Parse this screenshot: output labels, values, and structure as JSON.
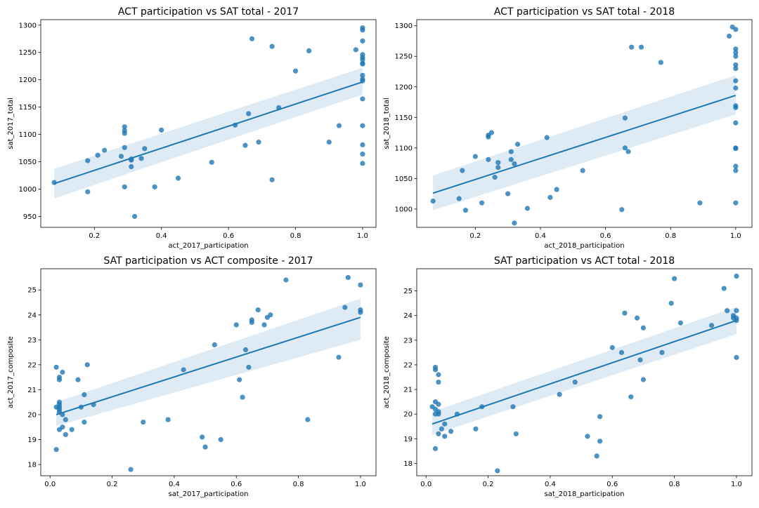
{
  "figure": {
    "colors": {
      "point": "#1f77b4",
      "line": "#1f77b4",
      "band": "#1f77b4",
      "axes": "#000000"
    }
  },
  "chart_data": [
    {
      "type": "scatter",
      "title": "ACT participation vs SAT total - 2017",
      "xlabel": "act_2017_participation",
      "ylabel": "sat_2017_total",
      "xlim": [
        0.04,
        1.04
      ],
      "ylim": [
        930,
        1310
      ],
      "xticks": [
        0.2,
        0.4,
        0.6,
        0.8,
        1.0
      ],
      "xtick_labels": [
        "0.2",
        "0.4",
        "0.6",
        "0.8",
        "1.0"
      ],
      "yticks": [
        950,
        1000,
        1050,
        1100,
        1150,
        1200,
        1250,
        1300
      ],
      "ytick_labels": [
        "950",
        "1000",
        "1050",
        "1100",
        "1150",
        "1200",
        "1250",
        "1300"
      ],
      "points": [
        [
          0.08,
          1012
        ],
        [
          0.18,
          1052
        ],
        [
          0.18,
          995
        ],
        [
          0.21,
          1062
        ],
        [
          0.23,
          1071
        ],
        [
          0.28,
          1060
        ],
        [
          0.29,
          1114
        ],
        [
          0.29,
          1107
        ],
        [
          0.29,
          1102
        ],
        [
          0.29,
          1076
        ],
        [
          0.29,
          1004
        ],
        [
          0.31,
          1055
        ],
        [
          0.31,
          1053
        ],
        [
          0.31,
          1041
        ],
        [
          0.32,
          950
        ],
        [
          0.34,
          1056
        ],
        [
          0.35,
          1074
        ],
        [
          0.38,
          1004
        ],
        [
          0.4,
          1108
        ],
        [
          0.45,
          1020
        ],
        [
          0.55,
          1049
        ],
        [
          0.62,
          1117
        ],
        [
          0.65,
          1080
        ],
        [
          0.66,
          1138
        ],
        [
          0.67,
          1275
        ],
        [
          0.69,
          1086
        ],
        [
          0.73,
          1261
        ],
        [
          0.73,
          1017
        ],
        [
          0.75,
          1149
        ],
        [
          0.8,
          1216
        ],
        [
          0.84,
          1253
        ],
        [
          0.9,
          1086
        ],
        [
          0.93,
          1116
        ],
        [
          0.98,
          1255
        ],
        [
          1.0,
          1295
        ],
        [
          1.0,
          1291
        ],
        [
          1.0,
          1271
        ],
        [
          1.0,
          1246
        ],
        [
          1.0,
          1241
        ],
        [
          1.0,
          1237
        ],
        [
          1.0,
          1230
        ],
        [
          1.0,
          1229
        ],
        [
          1.0,
          1208
        ],
        [
          1.0,
          1201
        ],
        [
          1.0,
          1198
        ],
        [
          1.0,
          1165
        ],
        [
          1.0,
          1116
        ],
        [
          1.0,
          1081
        ],
        [
          1.0,
          1064
        ],
        [
          1.0,
          1047
        ]
      ],
      "regression": {
        "x": [
          0.08,
          1.0
        ],
        "y": [
          1010,
          1196
        ],
        "band_lower": [
          983,
          1173
        ],
        "band_upper": [
          1037,
          1222
        ]
      }
    },
    {
      "type": "scatter",
      "title": "ACT participation vs SAT total - 2018",
      "xlabel": "act_2018_participation",
      "ylabel": "sat_2018_total",
      "xlim": [
        0.02,
        1.05
      ],
      "ylim": [
        970,
        1310
      ],
      "xticks": [
        0.2,
        0.4,
        0.6,
        0.8,
        1.0
      ],
      "xtick_labels": [
        "0.2",
        "0.4",
        "0.6",
        "0.8",
        "1.0"
      ],
      "yticks": [
        1000,
        1050,
        1100,
        1150,
        1200,
        1250,
        1300
      ],
      "ytick_labels": [
        "1000",
        "1050",
        "1100",
        "1150",
        "1200",
        "1250",
        "1300"
      ],
      "points": [
        [
          0.07,
          1013
        ],
        [
          0.15,
          1017
        ],
        [
          0.16,
          1063
        ],
        [
          0.17,
          998
        ],
        [
          0.2,
          1086
        ],
        [
          0.22,
          1010
        ],
        [
          0.24,
          1121
        ],
        [
          0.24,
          1118
        ],
        [
          0.24,
          1081
        ],
        [
          0.25,
          1125
        ],
        [
          0.26,
          1052
        ],
        [
          0.27,
          1076
        ],
        [
          0.27,
          1068
        ],
        [
          0.3,
          1025
        ],
        [
          0.31,
          1094
        ],
        [
          0.31,
          1081
        ],
        [
          0.32,
          1074
        ],
        [
          0.32,
          977
        ],
        [
          0.33,
          1106
        ],
        [
          0.36,
          1001
        ],
        [
          0.42,
          1117
        ],
        [
          0.43,
          1019
        ],
        [
          0.45,
          1032
        ],
        [
          0.53,
          1063
        ],
        [
          0.65,
          999
        ],
        [
          0.66,
          1149
        ],
        [
          0.66,
          1100
        ],
        [
          0.67,
          1094
        ],
        [
          0.68,
          1265
        ],
        [
          0.71,
          1265
        ],
        [
          0.77,
          1240
        ],
        [
          0.89,
          1010
        ],
        [
          0.98,
          1283
        ],
        [
          0.99,
          1298
        ],
        [
          1.0,
          1294
        ],
        [
          1.0,
          1262
        ],
        [
          1.0,
          1256
        ],
        [
          1.0,
          1250
        ],
        [
          1.0,
          1236
        ],
        [
          1.0,
          1230
        ],
        [
          1.0,
          1210
        ],
        [
          1.0,
          1198
        ],
        [
          1.0,
          1169
        ],
        [
          1.0,
          1166
        ],
        [
          1.0,
          1141
        ],
        [
          1.0,
          1100
        ],
        [
          1.0,
          1099
        ],
        [
          1.0,
          1070
        ],
        [
          1.0,
          1063
        ],
        [
          1.0,
          1010
        ]
      ],
      "regression": {
        "x": [
          0.07,
          1.0
        ],
        "y": [
          1026,
          1186
        ],
        "band_lower": [
          998,
          1155
        ],
        "band_upper": [
          1055,
          1219
        ]
      }
    },
    {
      "type": "scatter",
      "title": "SAT participation vs ACT composite - 2017",
      "xlabel": "sat_2017_participation",
      "ylabel": "act_2017_composite",
      "xlim": [
        -0.03,
        1.05
      ],
      "ylim": [
        17.55,
        25.85
      ],
      "xticks": [
        0.0,
        0.2,
        0.4,
        0.6,
        0.8,
        1.0
      ],
      "xtick_labels": [
        "0.0",
        "0.2",
        "0.4",
        "0.6",
        "0.8",
        "1.0"
      ],
      "yticks": [
        18,
        19,
        20,
        21,
        22,
        23,
        24,
        25
      ],
      "ytick_labels": [
        "18",
        "19",
        "20",
        "21",
        "22",
        "23",
        "24",
        "25"
      ],
      "points": [
        [
          0.02,
          21.9
        ],
        [
          0.02,
          20.3
        ],
        [
          0.02,
          18.6
        ],
        [
          0.03,
          21.5
        ],
        [
          0.03,
          21.4
        ],
        [
          0.03,
          20.5
        ],
        [
          0.03,
          20.4
        ],
        [
          0.03,
          20.3
        ],
        [
          0.03,
          20.2
        ],
        [
          0.03,
          20.1
        ],
        [
          0.03,
          19.4
        ],
        [
          0.04,
          21.7
        ],
        [
          0.04,
          20.0
        ],
        [
          0.04,
          19.5
        ],
        [
          0.05,
          19.8
        ],
        [
          0.05,
          19.2
        ],
        [
          0.07,
          19.4
        ],
        [
          0.09,
          21.4
        ],
        [
          0.1,
          20.3
        ],
        [
          0.11,
          20.8
        ],
        [
          0.11,
          19.7
        ],
        [
          0.12,
          22.0
        ],
        [
          0.14,
          20.4
        ],
        [
          0.26,
          17.8
        ],
        [
          0.3,
          19.7
        ],
        [
          0.38,
          19.8
        ],
        [
          0.43,
          21.8
        ],
        [
          0.49,
          19.1
        ],
        [
          0.5,
          18.7
        ],
        [
          0.53,
          22.8
        ],
        [
          0.55,
          19.0
        ],
        [
          0.6,
          23.6
        ],
        [
          0.61,
          21.4
        ],
        [
          0.62,
          20.7
        ],
        [
          0.63,
          22.6
        ],
        [
          0.64,
          21.9
        ],
        [
          0.65,
          23.8
        ],
        [
          0.65,
          23.7
        ],
        [
          0.67,
          24.2
        ],
        [
          0.69,
          23.6
        ],
        [
          0.7,
          23.9
        ],
        [
          0.71,
          24.0
        ],
        [
          0.76,
          25.4
        ],
        [
          0.83,
          19.8
        ],
        [
          0.93,
          22.3
        ],
        [
          0.95,
          24.3
        ],
        [
          0.96,
          25.5
        ],
        [
          1.0,
          25.2
        ],
        [
          1.0,
          24.2
        ],
        [
          1.0,
          24.1
        ]
      ],
      "regression": {
        "x": [
          0.02,
          1.0
        ],
        "y": [
          20.0,
          23.9
        ],
        "band_lower": [
          19.55,
          23.0
        ],
        "band_upper": [
          20.5,
          24.65
        ]
      }
    },
    {
      "type": "scatter",
      "title": "SAT participation vs ACT total - 2018",
      "xlabel": "sat_2018_participation",
      "ylabel": "act_2018_composite",
      "xlim": [
        -0.03,
        1.05
      ],
      "ylim": [
        17.5,
        25.9
      ],
      "xticks": [
        0.0,
        0.2,
        0.4,
        0.6,
        0.8,
        1.0
      ],
      "xtick_labels": [
        "0.0",
        "0.2",
        "0.4",
        "0.6",
        "0.8",
        "1.0"
      ],
      "yticks": [
        18,
        19,
        20,
        21,
        22,
        23,
        24,
        25
      ],
      "ytick_labels": [
        "18",
        "19",
        "20",
        "21",
        "22",
        "23",
        "24",
        "25"
      ],
      "points": [
        [
          0.02,
          20.3
        ],
        [
          0.03,
          21.9
        ],
        [
          0.03,
          21.8
        ],
        [
          0.03,
          20.5
        ],
        [
          0.03,
          20.2
        ],
        [
          0.03,
          20.0
        ],
        [
          0.03,
          18.6
        ],
        [
          0.04,
          21.6
        ],
        [
          0.04,
          21.3
        ],
        [
          0.04,
          20.4
        ],
        [
          0.04,
          20.1
        ],
        [
          0.04,
          20.0
        ],
        [
          0.04,
          19.2
        ],
        [
          0.05,
          19.4
        ],
        [
          0.06,
          19.6
        ],
        [
          0.06,
          19.1
        ],
        [
          0.08,
          19.3
        ],
        [
          0.1,
          20.0
        ],
        [
          0.16,
          19.4
        ],
        [
          0.18,
          20.3
        ],
        [
          0.23,
          17.7
        ],
        [
          0.28,
          20.3
        ],
        [
          0.29,
          19.2
        ],
        [
          0.43,
          20.8
        ],
        [
          0.48,
          21.3
        ],
        [
          0.52,
          19.1
        ],
        [
          0.55,
          18.3
        ],
        [
          0.56,
          19.9
        ],
        [
          0.56,
          18.9
        ],
        [
          0.6,
          22.7
        ],
        [
          0.63,
          22.5
        ],
        [
          0.64,
          24.1
        ],
        [
          0.66,
          20.7
        ],
        [
          0.68,
          23.9
        ],
        [
          0.69,
          22.2
        ],
        [
          0.7,
          23.5
        ],
        [
          0.7,
          21.4
        ],
        [
          0.76,
          22.5
        ],
        [
          0.79,
          24.5
        ],
        [
          0.8,
          25.5
        ],
        [
          0.82,
          23.7
        ],
        [
          0.92,
          23.6
        ],
        [
          0.96,
          25.1
        ],
        [
          0.97,
          24.2
        ],
        [
          0.99,
          24.0
        ],
        [
          0.99,
          23.9
        ],
        [
          1.0,
          25.6
        ],
        [
          1.0,
          24.2
        ],
        [
          1.0,
          23.9
        ],
        [
          1.0,
          23.8
        ],
        [
          1.0,
          22.3
        ]
      ],
      "regression": {
        "x": [
          0.02,
          1.0
        ],
        "y": [
          19.6,
          23.8
        ],
        "band_lower": [
          19.15,
          23.25
        ],
        "band_upper": [
          20.1,
          24.35
        ]
      }
    }
  ]
}
